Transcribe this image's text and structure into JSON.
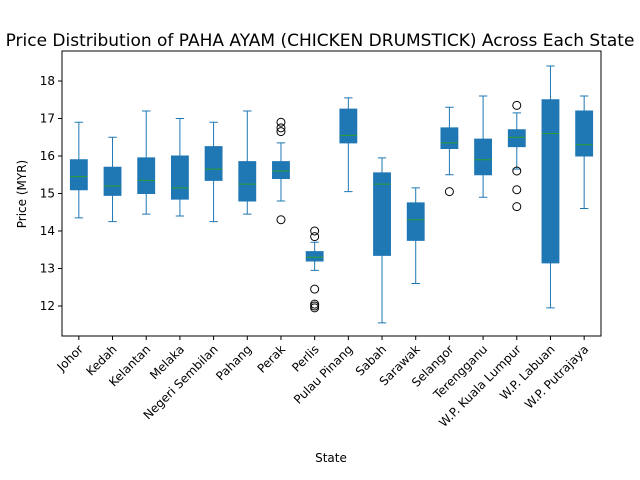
{
  "chart_data": {
    "type": "boxplot",
    "title": "Price Distribution of PAHA AYAM (CHICKEN DRUMSTICK) Across Each State",
    "xlabel": "State",
    "ylabel": "Price (MYR)",
    "ylim": [
      11.2,
      18.8
    ],
    "yticks": [
      12,
      13,
      14,
      15,
      16,
      17,
      18
    ],
    "grid": false,
    "colors": {
      "box": "#1f77b4",
      "median": "#2ca02c",
      "flier": "#000000"
    },
    "categories": [
      "Johor",
      "Kedah",
      "Kelantan",
      "Melaka",
      "Negeri Sembilan",
      "Pahang",
      "Perak",
      "Perlis",
      "Pulau Pinang",
      "Sabah",
      "Sarawak",
      "Selangor",
      "Terengganu",
      "W.P. Kuala Lumpur",
      "W.P. Labuan",
      "W.P. Putrajaya"
    ],
    "boxes": [
      {
        "whislo": 14.35,
        "q1": 15.1,
        "med": 15.45,
        "q3": 15.9,
        "whishi": 16.9,
        "fliers": []
      },
      {
        "whislo": 14.25,
        "q1": 14.95,
        "med": 15.2,
        "q3": 15.7,
        "whishi": 16.5,
        "fliers": []
      },
      {
        "whislo": 14.45,
        "q1": 15.0,
        "med": 15.35,
        "q3": 15.95,
        "whishi": 17.2,
        "fliers": []
      },
      {
        "whislo": 14.4,
        "q1": 14.85,
        "med": 15.15,
        "q3": 16.0,
        "whishi": 17.0,
        "fliers": []
      },
      {
        "whislo": 14.25,
        "q1": 15.35,
        "med": 15.65,
        "q3": 16.25,
        "whishi": 16.9,
        "fliers": []
      },
      {
        "whislo": 14.45,
        "q1": 14.8,
        "med": 15.25,
        "q3": 15.85,
        "whishi": 17.2,
        "fliers": []
      },
      {
        "whislo": 14.8,
        "q1": 15.4,
        "med": 15.6,
        "q3": 15.85,
        "whishi": 16.35,
        "fliers": [
          14.3,
          16.65,
          16.75,
          16.9
        ]
      },
      {
        "whislo": 12.95,
        "q1": 13.2,
        "med": 13.3,
        "q3": 13.45,
        "whishi": 13.7,
        "fliers": [
          11.95,
          12.0,
          12.05,
          12.45,
          13.85,
          14.0
        ]
      },
      {
        "whislo": 15.05,
        "q1": 16.35,
        "med": 16.55,
        "q3": 17.25,
        "whishi": 17.55,
        "fliers": []
      },
      {
        "whislo": 11.55,
        "q1": 13.35,
        "med": 15.25,
        "q3": 15.55,
        "whishi": 15.95,
        "fliers": []
      },
      {
        "whislo": 12.6,
        "q1": 13.75,
        "med": 14.3,
        "q3": 14.75,
        "whishi": 15.15,
        "fliers": []
      },
      {
        "whislo": 15.5,
        "q1": 16.2,
        "med": 16.35,
        "q3": 16.75,
        "whishi": 17.3,
        "fliers": [
          15.05
        ]
      },
      {
        "whislo": 14.9,
        "q1": 15.5,
        "med": 15.9,
        "q3": 16.45,
        "whishi": 17.6,
        "fliers": []
      },
      {
        "whislo": 15.65,
        "q1": 16.25,
        "med": 16.5,
        "q3": 16.7,
        "whishi": 17.15,
        "fliers": [
          14.65,
          15.1,
          15.6,
          17.35
        ]
      },
      {
        "whislo": 11.95,
        "q1": 13.15,
        "med": 16.6,
        "q3": 17.5,
        "whishi": 18.4,
        "fliers": []
      },
      {
        "whislo": 14.6,
        "q1": 16.0,
        "med": 16.3,
        "q3": 17.2,
        "whishi": 17.6,
        "fliers": []
      }
    ]
  }
}
